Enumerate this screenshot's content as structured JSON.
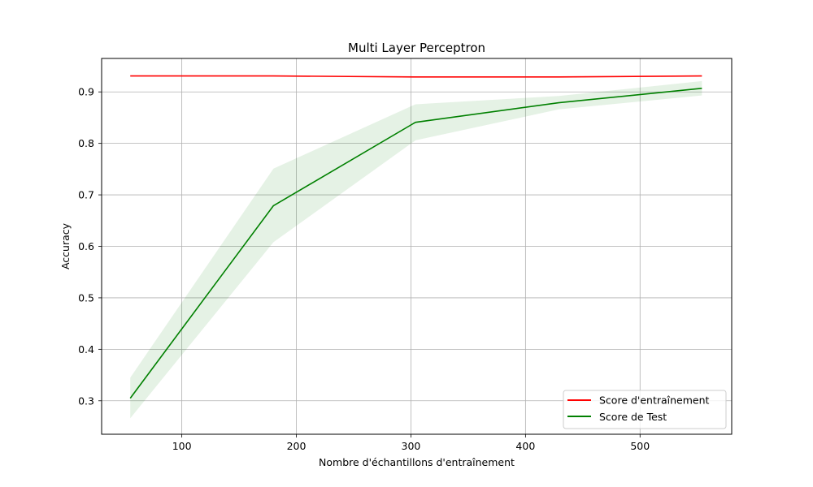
{
  "chart_data": {
    "type": "line",
    "title": "Multi Layer Perceptron",
    "xlabel": "Nombre d'échantillons d'entraînement",
    "ylabel": "Accuracy",
    "xlim": [
      30,
      580
    ],
    "ylim": [
      0.235,
      0.965
    ],
    "xticks": [
      100,
      200,
      300,
      400,
      500
    ],
    "yticks": [
      0.3,
      0.4,
      0.5,
      0.6,
      0.7,
      0.8,
      0.9
    ],
    "grid": true,
    "legend_position": "lower-right",
    "series": [
      {
        "name": "Score d'entraînement",
        "color": "#ff0000",
        "x": [
          55,
          180,
          304,
          429,
          554
        ],
        "y": [
          0.931,
          0.931,
          0.929,
          0.929,
          0.931
        ],
        "band_lower": [
          0.93,
          0.93,
          0.928,
          0.928,
          0.93
        ],
        "band_upper": [
          0.932,
          0.932,
          0.93,
          0.93,
          0.932
        ]
      },
      {
        "name": "Score de Test",
        "color": "#008000",
        "band_color": "#008000",
        "x": [
          55,
          180,
          304,
          429,
          554
        ],
        "y": [
          0.305,
          0.679,
          0.841,
          0.879,
          0.907
        ],
        "band_lower": [
          0.266,
          0.608,
          0.806,
          0.866,
          0.893
        ],
        "band_upper": [
          0.345,
          0.751,
          0.876,
          0.892,
          0.921
        ]
      }
    ]
  }
}
